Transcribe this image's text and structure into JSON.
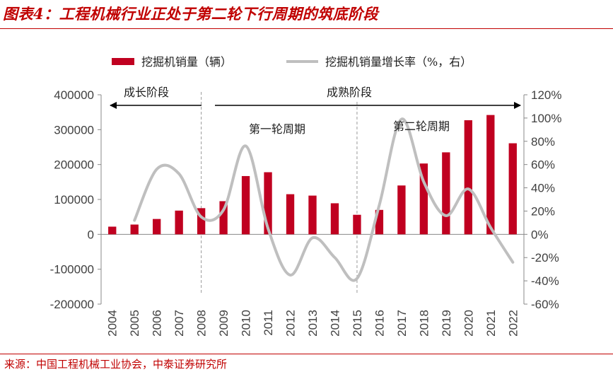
{
  "figure": {
    "title": "图表4：工程机械行业正处于第二轮下行周期的筑底阶段",
    "source": "来源：中国工程机械工业协会，中泰证券研究所"
  },
  "colors": {
    "bar": "#c00020",
    "line": "#bfbfbf",
    "title": "#c00000",
    "axis_text": "#404040"
  },
  "chart_data": {
    "type": "bar",
    "categories": [
      "2004",
      "2005",
      "2006",
      "2007",
      "2008",
      "2009",
      "2010",
      "2011",
      "2012",
      "2013",
      "2014",
      "2015",
      "2016",
      "2017",
      "2018",
      "2019",
      "2020",
      "2021",
      "2022"
    ],
    "series": [
      {
        "name": "挖掘机销量（辆）",
        "type": "bar",
        "axis": "left",
        "values": [
          22000,
          28000,
          44000,
          68000,
          75000,
          95000,
          167000,
          178000,
          115000,
          111000,
          89000,
          56000,
          70000,
          140000,
          203000,
          235000,
          327000,
          342000,
          261000
        ]
      },
      {
        "name": "挖掘机销量增长率（%，右）",
        "type": "line",
        "axis": "right",
        "values": [
          null,
          12,
          56,
          52,
          15,
          21,
          76,
          5,
          -35,
          -3,
          -20,
          -38,
          25,
          99,
          45,
          16,
          39,
          6,
          -24
        ]
      }
    ],
    "left_axis": {
      "min": -200000,
      "max": 400000,
      "step": 100000,
      "ticks": [
        "400000",
        "300000",
        "200000",
        "100000",
        "0",
        "-100000",
        "-200000"
      ]
    },
    "right_axis": {
      "min": -60,
      "max": 120,
      "step": 20,
      "ticks": [
        "120%",
        "100%",
        "80%",
        "60%",
        "40%",
        "20%",
        "0%",
        "-20%",
        "-40%",
        "-60%"
      ]
    },
    "annotations": {
      "growth_phase": "成长阶段",
      "mature_phase": "成熟阶段",
      "first_cycle": "第一轮周期",
      "second_cycle": "第二轮周期"
    },
    "legend": {
      "bar_label": "挖掘机销量（辆）",
      "line_label": "挖掘机销量增长率（%，右）",
      "position": "top"
    }
  }
}
